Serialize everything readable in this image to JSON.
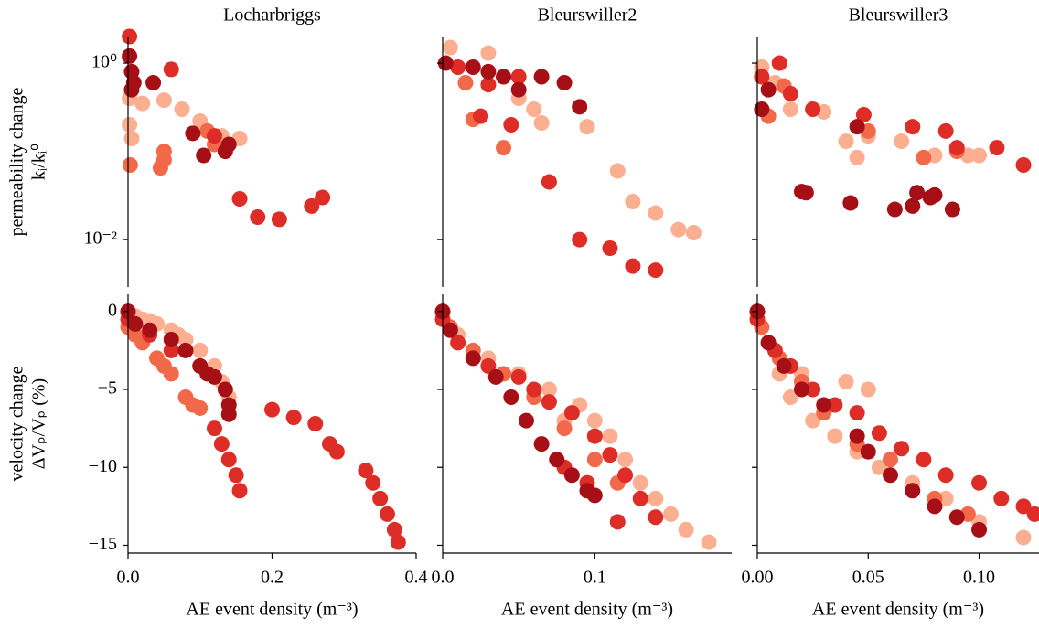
{
  "chart_data": [
    {
      "type": "scatter",
      "title": "Locharbriggs",
      "ylabel": [
        "permeability change",
        "kᵢ/kᵢ⁰"
      ],
      "yscale": "log",
      "xlim": [
        0,
        0.4
      ],
      "ylim": [
        0.0029,
        2
      ],
      "yticks": [
        {
          "value": 1,
          "label": "10⁰"
        },
        {
          "value": 0.01,
          "label": "10⁻²"
        }
      ],
      "series": [
        {
          "color": "#fcae91",
          "x": [
            0.002,
            0.02,
            0.05,
            0.075,
            0.1,
            0.13,
            0.155,
            0.002,
            0.005
          ],
          "values": [
            0.4,
            0.35,
            0.38,
            0.3,
            0.22,
            0.15,
            0.14,
            0.2,
            0.14
          ]
        },
        {
          "color": "#f2694a",
          "x": [
            0.003,
            0.045,
            0.05,
            0.05,
            0.11,
            0.12
          ],
          "values": [
            0.07,
            0.065,
            0.08,
            0.1,
            0.17,
            0.12
          ]
        },
        {
          "color": "#de2d26",
          "x": [
            0.002,
            0.06,
            0.155,
            0.18,
            0.21,
            0.255,
            0.27,
            0.12
          ],
          "values": [
            2,
            0.85,
            0.029,
            0.018,
            0.017,
            0.024,
            0.03,
            0.15
          ]
        },
        {
          "color": "#a50f15",
          "x": [
            0.002,
            0.005,
            0.008,
            0.035,
            0.09,
            0.105,
            0.135,
            0.14,
            0.005
          ],
          "values": [
            1.2,
            0.8,
            0.6,
            0.6,
            0.16,
            0.09,
            0.1,
            0.12,
            0.5
          ]
        }
      ]
    },
    {
      "type": "scatter",
      "title": "Bleurswiller2",
      "yscale": "log",
      "xlim": [
        0,
        0.19
      ],
      "ylim": [
        0.0029,
        2
      ],
      "yticks": [
        1,
        0.01
      ],
      "series": [
        {
          "color": "#fcae91",
          "x": [
            0.005,
            0.03,
            0.05,
            0.06,
            0.065,
            0.095,
            0.115,
            0.125,
            0.14,
            0.155,
            0.165
          ],
          "values": [
            1.5,
            1.3,
            0.4,
            0.3,
            0.21,
            0.19,
            0.06,
            0.027,
            0.02,
            0.013,
            0.012
          ]
        },
        {
          "color": "#f2694a",
          "x": [
            0.02,
            0.015,
            0.04
          ],
          "values": [
            0.23,
            0.6,
            0.11
          ]
        },
        {
          "color": "#de2d26",
          "x": [
            0.01,
            0.025,
            0.03,
            0.05,
            0.045,
            0.07,
            0.09,
            0.11,
            0.125,
            0.14
          ],
          "values": [
            0.9,
            0.25,
            0.57,
            0.7,
            0.2,
            0.045,
            0.01,
            0.008,
            0.005,
            0.0045
          ]
        },
        {
          "color": "#a50f15",
          "x": [
            0.002,
            0.02,
            0.03,
            0.04,
            0.05,
            0.065,
            0.08,
            0.09
          ],
          "values": [
            1,
            0.9,
            0.8,
            0.7,
            0.5,
            0.7,
            0.6,
            0.32
          ]
        }
      ]
    },
    {
      "type": "scatter",
      "title": "Bleurswiller3",
      "yscale": "log",
      "xlim": [
        0,
        0.127
      ],
      "ylim": [
        0.0029,
        2
      ],
      "yticks": [
        1,
        0.01
      ],
      "series": [
        {
          "color": "#fcae91",
          "x": [
            0.002,
            0.008,
            0.015,
            0.03,
            0.04,
            0.045,
            0.05,
            0.065,
            0.08,
            0.095,
            0.1
          ],
          "values": [
            0.9,
            0.6,
            0.3,
            0.28,
            0.13,
            0.085,
            0.15,
            0.13,
            0.09,
            0.09,
            0.09
          ]
        },
        {
          "color": "#f2694a",
          "x": [
            0.005,
            0.012,
            0.05,
            0.075,
            0.09
          ],
          "values": [
            0.25,
            0.55,
            0.17,
            0.085,
            0.1
          ]
        },
        {
          "color": "#de2d26",
          "x": [
            0.002,
            0.01,
            0.015,
            0.025,
            0.048,
            0.07,
            0.085,
            0.09,
            0.108,
            0.12
          ],
          "values": [
            0.7,
            1,
            0.45,
            0.3,
            0.26,
            0.19,
            0.17,
            0.11,
            0.11,
            0.07
          ]
        },
        {
          "color": "#a50f15",
          "x": [
            0.002,
            0.005,
            0.02,
            0.022,
            0.042,
            0.062,
            0.07,
            0.072,
            0.078,
            0.08,
            0.088,
            0.045
          ],
          "values": [
            0.3,
            0.5,
            0.035,
            0.034,
            0.026,
            0.022,
            0.024,
            0.034,
            0.03,
            0.032,
            0.022,
            0.19
          ]
        }
      ]
    },
    {
      "type": "scatter",
      "ylabel": [
        "velocity change",
        "ΔVₚ/Vₚ (%)"
      ],
      "xlabel": "AE event density (m⁻³)",
      "xlim": [
        0,
        0.4
      ],
      "ylim": [
        -15.5,
        1.1
      ],
      "xticks": [
        {
          "value": 0,
          "label": "0.0"
        },
        0.2,
        0.4
      ],
      "yticks": [
        0,
        {
          "value": -5,
          "label": "−5"
        },
        {
          "value": -10,
          "label": "−10"
        },
        {
          "value": -15,
          "label": "−15"
        }
      ],
      "series": [
        {
          "color": "#fcae91",
          "x": [
            0,
            0.01,
            0.02,
            0.04,
            0.06,
            0.08,
            0.1,
            0.12,
            0.13,
            0.14,
            0.03,
            0.07
          ],
          "values": [
            0,
            -0.3,
            -0.5,
            -0.8,
            -1.2,
            -1.8,
            -2.5,
            -3.5,
            -4.5,
            -5.5,
            -0.6,
            -1.5
          ]
        },
        {
          "color": "#f2694a",
          "x": [
            0,
            0.02,
            0.04,
            0.06,
            0.08,
            0.09,
            0.1,
            0.01,
            0.05
          ],
          "values": [
            -1,
            -2,
            -3,
            -4,
            -5.5,
            -6,
            -6.2,
            -1.5,
            -3.5
          ]
        },
        {
          "color": "#de2d26",
          "x": [
            0,
            0.03,
            0.06,
            0.1,
            0.12,
            0.13,
            0.14,
            0.15,
            0.155,
            0.2,
            0.23,
            0.26,
            0.28,
            0.29,
            0.33,
            0.34,
            0.35,
            0.36,
            0.37,
            0.375
          ],
          "values": [
            -0.5,
            -1.5,
            -2.5,
            -3.5,
            -7.5,
            -8.5,
            -9.5,
            -10.5,
            -11.5,
            -6.3,
            -6.8,
            -7.2,
            -8.5,
            -9,
            -10.2,
            -11,
            -12,
            -13,
            -14,
            -14.8
          ]
        },
        {
          "color": "#a50f15",
          "x": [
            0,
            0.01,
            0.03,
            0.06,
            0.08,
            0.1,
            0.12,
            0.135,
            0.14,
            0.14,
            0.11
          ],
          "values": [
            0,
            -0.8,
            -1.2,
            -1.8,
            -2.5,
            -3.5,
            -4.2,
            -5,
            -6,
            -6.6,
            -4
          ]
        }
      ]
    },
    {
      "type": "scatter",
      "xlabel": "AE event density (m⁻³)",
      "xlim": [
        0,
        0.19
      ],
      "ylim": [
        -15.5,
        1.1
      ],
      "xticks": [
        {
          "value": 0,
          "label": "0.0"
        },
        0.1
      ],
      "yticks": [
        0,
        -5,
        -10,
        -15
      ],
      "series": [
        {
          "color": "#fcae91",
          "x": [
            0,
            0.01,
            0.03,
            0.05,
            0.07,
            0.09,
            0.1,
            0.11,
            0.12,
            0.13,
            0.14,
            0.15,
            0.16,
            0.175,
            0.08
          ],
          "values": [
            0,
            -1.5,
            -3,
            -4,
            -5,
            -6,
            -7,
            -8,
            -9.5,
            -11,
            -12,
            -13,
            -14,
            -14.8,
            -7
          ]
        },
        {
          "color": "#f2694a",
          "x": [
            0.005,
            0.02,
            0.04,
            0.06,
            0.08,
            0.1,
            0.115
          ],
          "values": [
            -1,
            -2.5,
            -4,
            -5.5,
            -7.5,
            -9.5,
            -11
          ]
        },
        {
          "color": "#de2d26",
          "x": [
            0,
            0.01,
            0.03,
            0.05,
            0.06,
            0.07,
            0.085,
            0.1,
            0.11,
            0.12,
            0.13,
            0.14,
            0.115,
            0.095,
            0.08
          ],
          "values": [
            -0.5,
            -2,
            -3.5,
            -4.2,
            -5,
            -5.8,
            -6.5,
            -8,
            -9.2,
            -10.5,
            -12,
            -13.2,
            -13.5,
            -11,
            -10
          ]
        },
        {
          "color": "#a50f15",
          "x": [
            0,
            0.005,
            0.02,
            0.035,
            0.045,
            0.055,
            0.065,
            0.075,
            0.085,
            0.095,
            0.1
          ],
          "values": [
            0,
            -1.2,
            -3,
            -4.2,
            -5.5,
            -7,
            -8.5,
            -9.5,
            -10.5,
            -11.5,
            -11.8
          ]
        }
      ]
    },
    {
      "type": "scatter",
      "xlabel": "AE event density (m⁻³)",
      "xlim": [
        0,
        0.127
      ],
      "ylim": [
        -15.5,
        1.1
      ],
      "xticks": [
        {
          "value": 0,
          "label": "0.00"
        },
        0.05,
        {
          "value": 0.1,
          "label": "0.10"
        }
      ],
      "yticks": [
        0,
        -5,
        -10,
        -15
      ],
      "series": [
        {
          "color": "#fcae91",
          "x": [
            0,
            0.005,
            0.01,
            0.015,
            0.025,
            0.035,
            0.045,
            0.055,
            0.07,
            0.085,
            0.1,
            0.12,
            0.02,
            0.04,
            0.05
          ],
          "values": [
            0,
            -2,
            -4,
            -5.5,
            -7,
            -8,
            -9,
            -10,
            -11,
            -12,
            -13.5,
            -14.5,
            -4,
            -4.5,
            -5
          ]
        },
        {
          "color": "#f2694a",
          "x": [
            0.002,
            0.01,
            0.02,
            0.03,
            0.045,
            0.06,
            0.08,
            0.095
          ],
          "values": [
            -1,
            -3,
            -4.5,
            -6.5,
            -8.5,
            -9.5,
            -12,
            -13
          ]
        },
        {
          "color": "#de2d26",
          "x": [
            0,
            0.008,
            0.015,
            0.025,
            0.035,
            0.045,
            0.055,
            0.065,
            0.075,
            0.085,
            0.1,
            0.11,
            0.125,
            0.12
          ],
          "values": [
            -0.5,
            -2.5,
            -3.5,
            -5,
            -6,
            -6.5,
            -7.8,
            -8.8,
            -9.5,
            -10.5,
            -11,
            -12,
            -13,
            -12.5
          ]
        },
        {
          "color": "#a50f15",
          "x": [
            0,
            0.005,
            0.012,
            0.02,
            0.03,
            0.045,
            0.05,
            0.06,
            0.07,
            0.08,
            0.09,
            0.1
          ],
          "values": [
            0,
            -2,
            -3.5,
            -5,
            -6,
            -8,
            -9,
            -10.5,
            -11.5,
            -12.5,
            -13.2,
            -14
          ]
        }
      ]
    }
  ]
}
